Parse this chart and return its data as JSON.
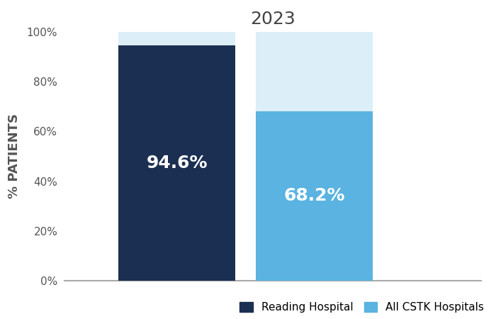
{
  "title": "2023",
  "ylabel": "% PATIENTS",
  "categories": [
    "Reading Hospital",
    "All CSTK Hospitals"
  ],
  "values": [
    94.6,
    68.2
  ],
  "bar_colors": [
    "#1b2f52",
    "#5ab3e0"
  ],
  "remainder_colors": [
    "#dceef8",
    "#dceef8"
  ],
  "label_color": "#ffffff",
  "tick_labels": [
    "0%",
    "20%",
    "40%",
    "60%",
    "80%",
    "100%"
  ],
  "tick_values": [
    0,
    20,
    40,
    60,
    80,
    100
  ],
  "ylim": [
    0,
    100
  ],
  "x_positions": [
    0.27,
    0.6
  ],
  "bar_width": 0.28,
  "label_fontsize": 18,
  "title_fontsize": 18,
  "ylabel_fontsize": 13,
  "tick_fontsize": 11,
  "legend_fontsize": 11,
  "axis_color": "#aaaaaa",
  "tick_color": "#555555",
  "title_color": "#444444",
  "background_color": "#ffffff",
  "legend_labels": [
    "Reading Hospital",
    "All CSTK Hospitals"
  ],
  "legend_colors": [
    "#1b2f52",
    "#5ab3e0"
  ]
}
